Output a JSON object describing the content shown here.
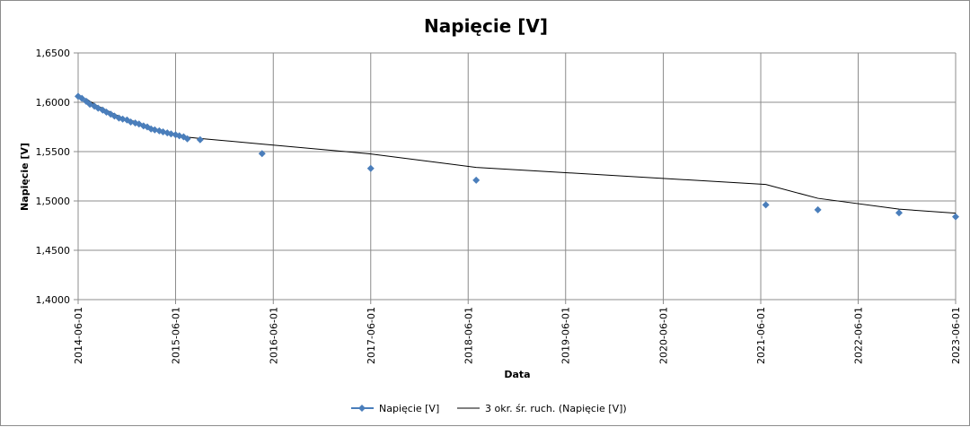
{
  "chart_data": {
    "type": "line",
    "title": "Napięcie [V]",
    "xlabel": "Data",
    "ylabel": "Napięcie [V]",
    "ylim": [
      1.4,
      1.65
    ],
    "ytick_labels": [
      "1,4000",
      "1,4500",
      "1,5000",
      "1,5500",
      "1,6000",
      "1,6500"
    ],
    "yticks": [
      1.4,
      1.45,
      1.5,
      1.55,
      1.6,
      1.65
    ],
    "xlim": [
      "2014-06-01",
      "2023-06-01"
    ],
    "xtick_labels": [
      "2014-06-01",
      "2015-06-01",
      "2016-06-01",
      "2017-06-01",
      "2018-06-01",
      "2019-06-01",
      "2020-06-01",
      "2021-06-01",
      "2022-06-01",
      "2023-06-01"
    ],
    "grid": true,
    "legend_position": "bottom",
    "series": [
      {
        "name": "Napięcie [V]",
        "color": "#4a7ebb",
        "marker": "diamond",
        "x": [
          "2014-06-01",
          "2014-06-15",
          "2014-07-01",
          "2014-07-15",
          "2014-08-01",
          "2014-08-15",
          "2014-09-01",
          "2014-09-15",
          "2014-10-01",
          "2014-10-15",
          "2014-11-01",
          "2014-11-15",
          "2014-12-01",
          "2014-12-15",
          "2015-01-01",
          "2015-01-15",
          "2015-02-01",
          "2015-02-15",
          "2015-03-01",
          "2015-03-15",
          "2015-04-01",
          "2015-04-15",
          "2015-05-01",
          "2015-05-15",
          "2015-06-01",
          "2015-06-15",
          "2015-07-01",
          "2015-07-15",
          "2015-09-01",
          "2016-04-20",
          "2017-06-01",
          "2018-07-01",
          "2021-06-20",
          "2022-01-01",
          "2022-11-01",
          "2023-06-01"
        ],
        "values": [
          1.606,
          1.604,
          1.601,
          1.598,
          1.596,
          1.594,
          1.592,
          1.59,
          1.588,
          1.586,
          1.584,
          1.583,
          1.582,
          1.58,
          1.579,
          1.578,
          1.576,
          1.575,
          1.573,
          1.572,
          1.571,
          1.57,
          1.569,
          1.568,
          1.567,
          1.566,
          1.565,
          1.563,
          1.562,
          1.548,
          1.533,
          1.521,
          1.496,
          1.491,
          1.488,
          1.484
        ]
      },
      {
        "name": "3 okr. śr. ruch. (Napięcie [V])",
        "color": "#000000",
        "type": "moving-average",
        "period": 3
      }
    ]
  }
}
